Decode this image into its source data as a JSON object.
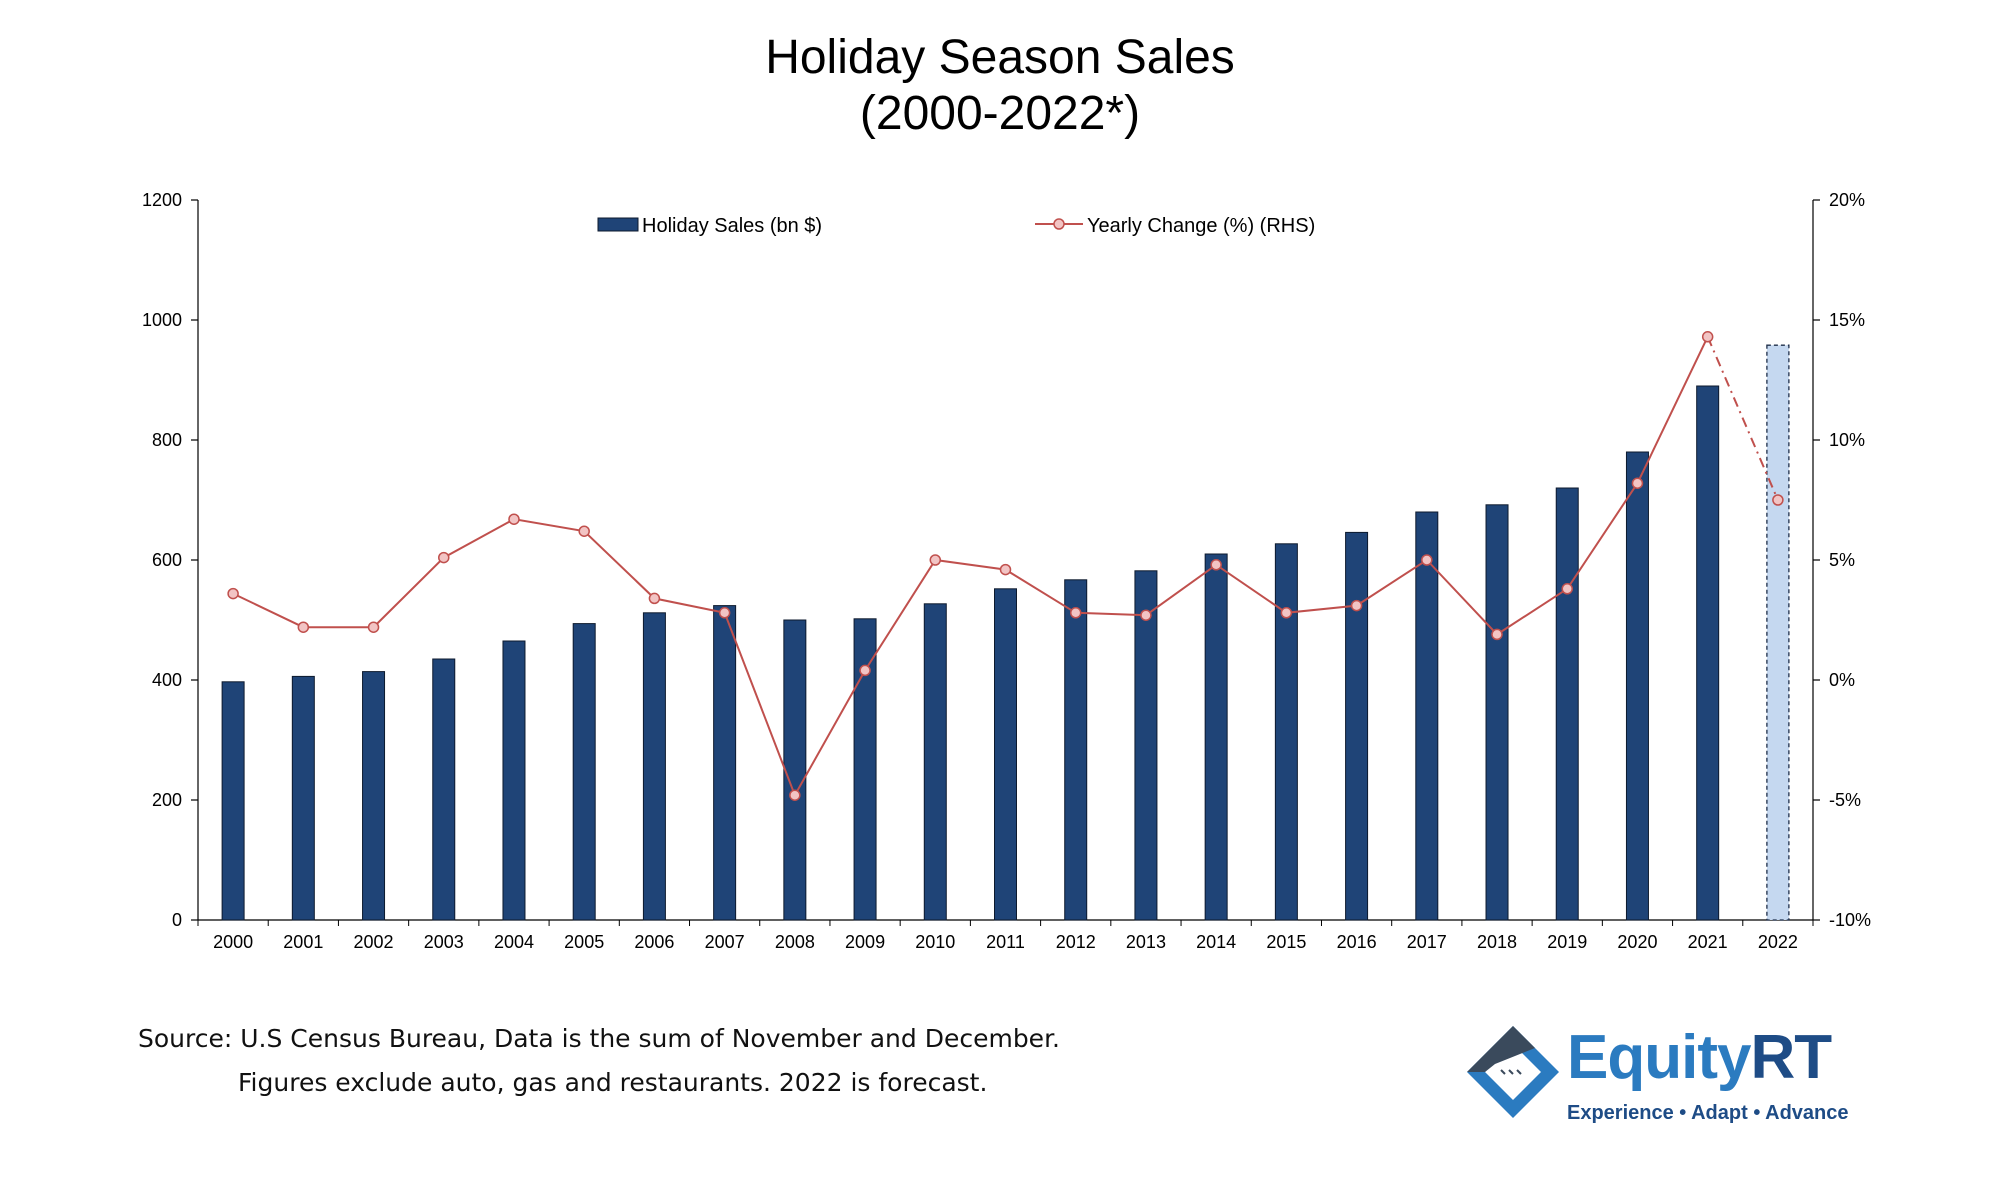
{
  "title_line1": "Holiday Season Sales",
  "title_line2": "(2000-2022*)",
  "source": {
    "line1": "Source: U.S Census Bureau, Data is the sum of November and December.",
    "line2": "Figures exclude auto, gas and restaurants. 2022 is forecast."
  },
  "logo": {
    "word_a": "Equity",
    "word_b": "RT",
    "tagline": "Experience • Adapt • Advance"
  },
  "colors": {
    "bar": "#1f4477",
    "bar_forecast": "#c5d8f0",
    "line": "#c0504d",
    "marker_fill": "#f2c4c4"
  },
  "chart_data": {
    "type": "bar",
    "categories": [
      "2000",
      "2001",
      "2002",
      "2003",
      "2004",
      "2005",
      "2006",
      "2007",
      "2008",
      "2009",
      "2010",
      "2011",
      "2012",
      "2013",
      "2014",
      "2015",
      "2016",
      "2017",
      "2018",
      "2019",
      "2020",
      "2021",
      "2022"
    ],
    "series": [
      {
        "name": "Holiday Sales (bn $)",
        "type": "bar",
        "axis": "left",
        "values": [
          397,
          406,
          414,
          435,
          465,
          494,
          512,
          524,
          500,
          502,
          527,
          552,
          567,
          582,
          610,
          627,
          646,
          680,
          692,
          720,
          780,
          890,
          958
        ],
        "forecast_from": "2022"
      },
      {
        "name": "Yearly Change (%) (RHS)",
        "type": "line",
        "axis": "right",
        "values": [
          3.6,
          2.2,
          2.2,
          5.1,
          6.7,
          6.2,
          3.4,
          2.8,
          -4.8,
          0.4,
          5.0,
          4.6,
          2.8,
          2.7,
          4.8,
          2.8,
          3.1,
          5.0,
          1.9,
          3.8,
          8.2,
          14.3,
          7.5
        ],
        "forecast_from": "2022"
      }
    ],
    "ylim_left": [
      0,
      1200
    ],
    "yticks_left": [
      "0",
      "200",
      "400",
      "600",
      "800",
      "1000",
      "1200"
    ],
    "ylim_right": [
      -10,
      20
    ],
    "yticks_right": [
      "-10%",
      "-5%",
      "0%",
      "5%",
      "10%",
      "15%",
      "20%"
    ],
    "legend": [
      "Holiday Sales (bn $)",
      "Yearly Change (%) (RHS)"
    ],
    "legend_position": "top-center",
    "grid": false
  }
}
